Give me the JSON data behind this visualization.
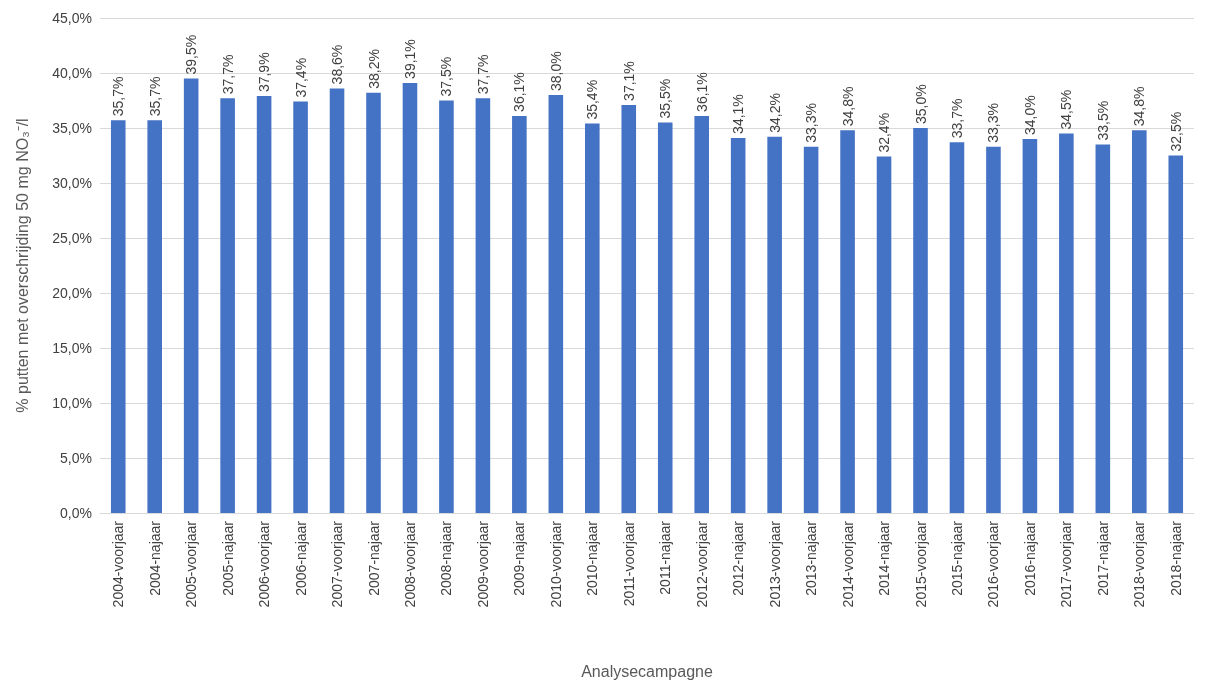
{
  "chart_data": {
    "type": "bar",
    "xlabel": "Analysecampagne",
    "ylabel": "% putten met overschrijding 50 mg NO₃⁻/l",
    "categories": [
      "2004-voorjaar",
      "2004-najaar",
      "2005-voorjaar",
      "2005-najaar",
      "2006-voorjaar",
      "2006-najaar",
      "2007-voorjaar",
      "2007-najaar",
      "2008-voorjaar",
      "2008-najaar",
      "2009-voorjaar",
      "2009-najaar",
      "2010-voorjaar",
      "2010-najaar",
      "2011-voorjaar",
      "2011-najaar",
      "2012-voorjaar",
      "2012-najaar",
      "2013-voorjaar",
      "2013-najaar",
      "2014-voorjaar",
      "2014-najaar",
      "2015-voorjaar",
      "2015-najaar",
      "2016-voorjaar",
      "2016-najaar",
      "2017-voorjaar",
      "2017-najaar",
      "2018-voorjaar",
      "2018-najaar"
    ],
    "values": [
      35.7,
      35.7,
      39.5,
      37.7,
      37.9,
      37.4,
      38.6,
      38.2,
      39.1,
      37.5,
      37.7,
      36.1,
      38.0,
      35.4,
      37.1,
      35.5,
      36.1,
      34.1,
      34.2,
      33.3,
      34.8,
      32.4,
      35.0,
      33.7,
      33.3,
      34.0,
      34.5,
      33.5,
      34.8,
      32.5
    ],
    "value_labels": [
      "35,7%",
      "35,7%",
      "39,5%",
      "37,7%",
      "37,9%",
      "37,4%",
      "38,6%",
      "38,2%",
      "39,1%",
      "37,5%",
      "37,7%",
      "36,1%",
      "38,0%",
      "35,4%",
      "37,1%",
      "35,5%",
      "36,1%",
      "34,1%",
      "34,2%",
      "33,3%",
      "34,8%",
      "32,4%",
      "35,0%",
      "33,7%",
      "33,3%",
      "34,0%",
      "34,5%",
      "33,5%",
      "34,8%",
      "32,5%"
    ],
    "color": "#4472c4",
    "ylim": [
      0,
      45
    ],
    "yticks": [
      {
        "value": 0,
        "label": "0,0%"
      },
      {
        "value": 5,
        "label": "5,0%"
      },
      {
        "value": 10,
        "label": "10,0%"
      },
      {
        "value": 15,
        "label": "15,0%"
      },
      {
        "value": 20,
        "label": "20,0%"
      },
      {
        "value": 25,
        "label": "25,0%"
      },
      {
        "value": 30,
        "label": "30,0%"
      },
      {
        "value": 35,
        "label": "35,0%"
      },
      {
        "value": 40,
        "label": "40,0%"
      },
      {
        "value": 45,
        "label": "45,0%"
      }
    ],
    "grid": "y"
  }
}
